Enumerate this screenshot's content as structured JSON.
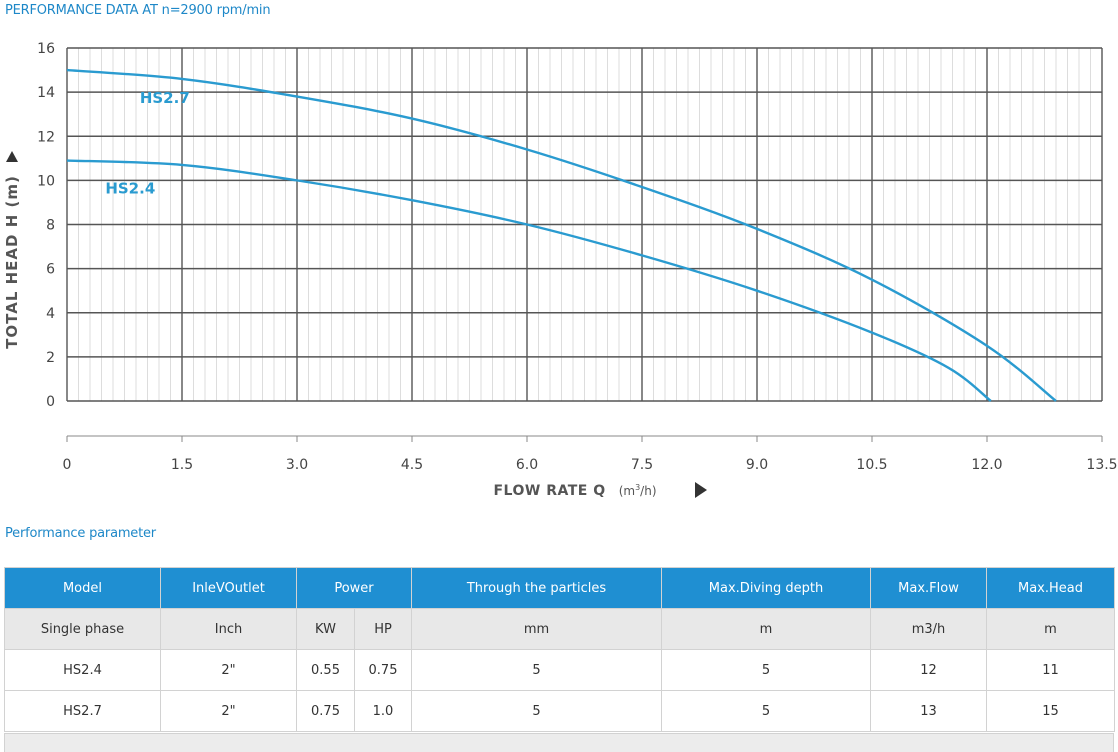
{
  "header": {
    "title": "PERFORMANCE DATA AT n=2900 rpm/min"
  },
  "chart_data": {
    "type": "line",
    "xlabel": "FLOW RATE Q",
    "xunit_base": "(m",
    "xunit_sup": "3",
    "xunit_tail": "/h)",
    "ylabel": "TOTAL HEAD H (m)",
    "xlim": [
      0,
      13.5
    ],
    "ylim": [
      0,
      16
    ],
    "xticks": [
      0,
      1.5,
      3.0,
      4.5,
      6.0,
      7.5,
      9.0,
      10.5,
      12.0,
      13.5
    ],
    "xtick_labels": [
      "0",
      "1.5",
      "3.0",
      "4.5",
      "6.0",
      "7.5",
      "9.0",
      "10.5",
      "12.0",
      "13.5"
    ],
    "yticks": [
      0,
      2,
      4,
      6,
      8,
      10,
      12,
      14,
      16
    ],
    "ytick_labels": [
      "0",
      "2",
      "4",
      "6",
      "8",
      "10",
      "12",
      "14",
      "16"
    ],
    "grid": true,
    "series": [
      {
        "name": "HS2.7",
        "color": "#2a9bd0",
        "x": [
          0,
          1.5,
          3.0,
          4.5,
          6.0,
          7.5,
          9.0,
          10.5,
          12.0,
          12.9
        ],
        "y": [
          15.0,
          14.6,
          13.8,
          12.8,
          11.4,
          9.7,
          7.8,
          5.5,
          2.5,
          0
        ]
      },
      {
        "name": "HS2.4",
        "color": "#2a9bd0",
        "x": [
          0,
          1.5,
          3.0,
          4.5,
          6.0,
          7.5,
          9.0,
          10.5,
          11.5,
          12.05
        ],
        "y": [
          10.9,
          10.7,
          10.0,
          9.1,
          8.0,
          6.6,
          5.0,
          3.1,
          1.5,
          0
        ]
      }
    ]
  },
  "params": {
    "title": "Performance parameter",
    "headers": {
      "model": "Model",
      "inlet": "InleVOutlet",
      "power": "Power",
      "particles": "Through the particles",
      "depth": "Max.Diving depth",
      "flow": "Max.Flow",
      "head": "Max.Head"
    },
    "units": [
      "Single phase",
      "Inch",
      "KW",
      "HP",
      "mm",
      "m",
      "m3/h",
      "m"
    ],
    "rows": [
      [
        "HS2.4",
        "2\"",
        "0.55",
        "0.75",
        "5",
        "5",
        "12",
        "11"
      ],
      [
        "HS2.7",
        "2\"",
        "0.75",
        "1.0",
        "5",
        "5",
        "13",
        "15"
      ]
    ]
  }
}
